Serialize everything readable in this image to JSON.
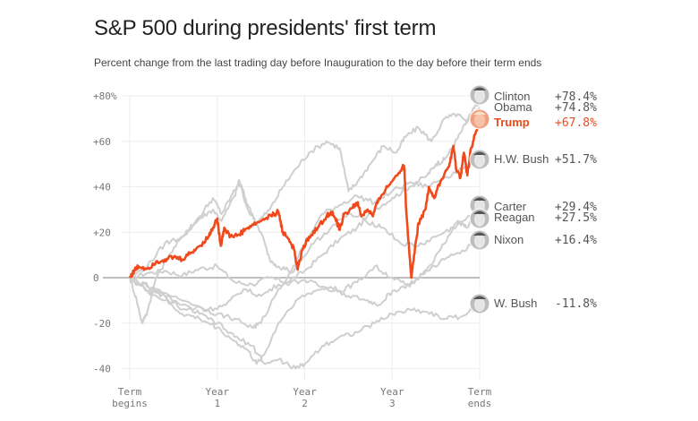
{
  "title": "S&P 500 during presidents' first term",
  "subtitle": "Percent change from the last trading day before Inauguration to the day before their term ends",
  "chart_data": {
    "type": "line",
    "title": "S&P 500 during presidents' first term",
    "subtitle": "Percent change from the last trading day before Inauguration to the day before their term ends",
    "xlabel": "",
    "ylabel": "",
    "xlim": [
      0,
      4
    ],
    "ylim": [
      -45,
      82
    ],
    "grid": true,
    "legend": "right",
    "y_ticks": [
      {
        "value": 80,
        "label": "+80%"
      },
      {
        "value": 60,
        "label": "+60"
      },
      {
        "value": 40,
        "label": "+40"
      },
      {
        "value": 20,
        "label": "+20"
      },
      {
        "value": 0,
        "label": "0"
      },
      {
        "value": -20,
        "label": "-20"
      },
      {
        "value": -40,
        "label": "-40"
      }
    ],
    "x_ticks": [
      {
        "value": 0,
        "line1": "Term",
        "line2": "begins"
      },
      {
        "value": 1,
        "line1": "Year",
        "line2": "1"
      },
      {
        "value": 2,
        "line1": "Year",
        "line2": "2"
      },
      {
        "value": 3,
        "line1": "Year",
        "line2": "3"
      },
      {
        "value": 4,
        "line1": "Term",
        "line2": "ends"
      }
    ],
    "colors": {
      "highlight": "#f04a1c",
      "other": "#cfcfcf",
      "zero_line": "#aaaaaa",
      "grid": "#eeeeee"
    },
    "series": [
      {
        "name": "Clinton",
        "value_label": "+78.4%",
        "final": 78.4,
        "highlight": false,
        "points": [
          [
            0,
            0
          ],
          [
            0.2,
            2
          ],
          [
            0.4,
            3
          ],
          [
            0.6,
            1
          ],
          [
            0.8,
            4
          ],
          [
            1.0,
            5
          ],
          [
            1.2,
            -2
          ],
          [
            1.4,
            -3
          ],
          [
            1.6,
            0
          ],
          [
            1.8,
            -2
          ],
          [
            2.0,
            3
          ],
          [
            2.2,
            10
          ],
          [
            2.4,
            17
          ],
          [
            2.6,
            22
          ],
          [
            2.8,
            30
          ],
          [
            3.0,
            35
          ],
          [
            3.2,
            40
          ],
          [
            3.4,
            45
          ],
          [
            3.5,
            50
          ],
          [
            3.6,
            52
          ],
          [
            3.7,
            58
          ],
          [
            3.8,
            65
          ],
          [
            3.9,
            72
          ],
          [
            4.0,
            78.4
          ]
        ]
      },
      {
        "name": "Obama",
        "value_label": "+74.8%",
        "final": 74.8,
        "highlight": false,
        "points": [
          [
            0,
            0
          ],
          [
            0.08,
            -10
          ],
          [
            0.14,
            -20
          ],
          [
            0.2,
            -15
          ],
          [
            0.3,
            0
          ],
          [
            0.45,
            10
          ],
          [
            0.6,
            18
          ],
          [
            0.8,
            26
          ],
          [
            0.95,
            30
          ],
          [
            1.05,
            25
          ],
          [
            1.2,
            36
          ],
          [
            1.25,
            43
          ],
          [
            1.35,
            32
          ],
          [
            1.45,
            24
          ],
          [
            1.6,
            30
          ],
          [
            1.75,
            40
          ],
          [
            1.9,
            48
          ],
          [
            2.05,
            55
          ],
          [
            2.25,
            60
          ],
          [
            2.4,
            57
          ],
          [
            2.5,
            38
          ],
          [
            2.6,
            42
          ],
          [
            2.75,
            50
          ],
          [
            2.9,
            58
          ],
          [
            3.05,
            55
          ],
          [
            3.15,
            62
          ],
          [
            3.3,
            66
          ],
          [
            3.45,
            60
          ],
          [
            3.6,
            70
          ],
          [
            3.75,
            72
          ],
          [
            3.85,
            68
          ],
          [
            4.0,
            74.8
          ]
        ]
      },
      {
        "name": "H.W. Bush",
        "value_label": "+51.7%",
        "final": 51.7,
        "highlight": false,
        "points": [
          [
            0,
            0
          ],
          [
            0.2,
            5
          ],
          [
            0.4,
            15
          ],
          [
            0.6,
            18
          ],
          [
            0.8,
            27
          ],
          [
            0.95,
            35
          ],
          [
            1.05,
            28
          ],
          [
            1.15,
            35
          ],
          [
            1.25,
            42
          ],
          [
            1.35,
            30
          ],
          [
            1.5,
            20
          ],
          [
            1.6,
            8
          ],
          [
            1.7,
            5
          ],
          [
            1.85,
            3
          ],
          [
            2.0,
            15
          ],
          [
            2.2,
            28
          ],
          [
            2.4,
            32
          ],
          [
            2.6,
            36
          ],
          [
            2.8,
            33
          ],
          [
            3.0,
            38
          ],
          [
            3.2,
            42
          ],
          [
            3.4,
            40
          ],
          [
            3.6,
            44
          ],
          [
            3.8,
            48
          ],
          [
            4.0,
            51.7
          ]
        ]
      },
      {
        "name": "Carter",
        "value_label": "+29.4%",
        "final": 29.4,
        "highlight": false,
        "points": [
          [
            0,
            0
          ],
          [
            0.3,
            -5
          ],
          [
            0.6,
            -10
          ],
          [
            0.9,
            -14
          ],
          [
            1.1,
            -12
          ],
          [
            1.3,
            -5
          ],
          [
            1.5,
            -8
          ],
          [
            1.7,
            -3
          ],
          [
            2.0,
            -1
          ],
          [
            2.2,
            -4
          ],
          [
            2.4,
            -6
          ],
          [
            2.6,
            -2
          ],
          [
            2.8,
            5
          ],
          [
            3.0,
            0
          ],
          [
            3.2,
            -4
          ],
          [
            3.4,
            4
          ],
          [
            3.6,
            15
          ],
          [
            3.75,
            25
          ],
          [
            3.85,
            22
          ],
          [
            4.0,
            29.4
          ]
        ]
      },
      {
        "name": "Reagan",
        "value_label": "+27.5%",
        "final": 27.5,
        "highlight": false,
        "points": [
          [
            0,
            0
          ],
          [
            0.2,
            -4
          ],
          [
            0.4,
            -8
          ],
          [
            0.6,
            -14
          ],
          [
            0.8,
            -13
          ],
          [
            1.0,
            -16
          ],
          [
            1.2,
            -18
          ],
          [
            1.4,
            -22
          ],
          [
            1.5,
            -20
          ],
          [
            1.7,
            -5
          ],
          [
            1.9,
            5
          ],
          [
            2.1,
            15
          ],
          [
            2.3,
            22
          ],
          [
            2.5,
            28
          ],
          [
            2.7,
            25
          ],
          [
            2.9,
            22
          ],
          [
            3.1,
            15
          ],
          [
            3.3,
            14
          ],
          [
            3.5,
            18
          ],
          [
            3.7,
            22
          ],
          [
            3.85,
            26
          ],
          [
            4.0,
            27.5
          ]
        ]
      },
      {
        "name": "Nixon",
        "value_label": "+16.4%",
        "final": 16.4,
        "highlight": false,
        "points": [
          [
            0,
            0
          ],
          [
            0.2,
            -6
          ],
          [
            0.4,
            -10
          ],
          [
            0.6,
            -16
          ],
          [
            0.8,
            -18
          ],
          [
            1.0,
            -22
          ],
          [
            1.2,
            -28
          ],
          [
            1.35,
            -32
          ],
          [
            1.45,
            -38
          ],
          [
            1.55,
            -33
          ],
          [
            1.7,
            -20
          ],
          [
            1.9,
            -10
          ],
          [
            2.1,
            -6
          ],
          [
            2.3,
            -4
          ],
          [
            2.5,
            -8
          ],
          [
            2.7,
            -10
          ],
          [
            2.85,
            -12
          ],
          [
            3.0,
            -6
          ],
          [
            3.2,
            -3
          ],
          [
            3.4,
            3
          ],
          [
            3.6,
            8
          ],
          [
            3.8,
            12
          ],
          [
            4.0,
            16.4
          ]
        ]
      },
      {
        "name": "W. Bush",
        "value_label": "-11.8%",
        "final": -11.8,
        "highlight": false,
        "points": [
          [
            0,
            0
          ],
          [
            0.2,
            -6
          ],
          [
            0.4,
            -8
          ],
          [
            0.6,
            -12
          ],
          [
            0.8,
            -16
          ],
          [
            1.0,
            -20
          ],
          [
            1.2,
            -26
          ],
          [
            1.4,
            -30
          ],
          [
            1.55,
            -38
          ],
          [
            1.7,
            -36
          ],
          [
            1.9,
            -40
          ],
          [
            2.0,
            -38
          ],
          [
            2.2,
            -30
          ],
          [
            2.4,
            -26
          ],
          [
            2.6,
            -24
          ],
          [
            2.8,
            -20
          ],
          [
            3.0,
            -16
          ],
          [
            3.2,
            -14
          ],
          [
            3.4,
            -15
          ],
          [
            3.6,
            -18
          ],
          [
            3.8,
            -17
          ],
          [
            4.0,
            -11.8
          ]
        ]
      },
      {
        "name": "Trump",
        "value_label": "+67.8%",
        "final": 67.8,
        "highlight": true,
        "points": [
          [
            0,
            0
          ],
          [
            0.05,
            3
          ],
          [
            0.1,
            5
          ],
          [
            0.2,
            4
          ],
          [
            0.3,
            7
          ],
          [
            0.4,
            8
          ],
          [
            0.5,
            9
          ],
          [
            0.6,
            8
          ],
          [
            0.7,
            11
          ],
          [
            0.8,
            14
          ],
          [
            0.9,
            18
          ],
          [
            0.95,
            22
          ],
          [
            1.0,
            26
          ],
          [
            1.04,
            14
          ],
          [
            1.08,
            22
          ],
          [
            1.15,
            18
          ],
          [
            1.25,
            19
          ],
          [
            1.35,
            22
          ],
          [
            1.45,
            24
          ],
          [
            1.55,
            26
          ],
          [
            1.65,
            28
          ],
          [
            1.7,
            29
          ],
          [
            1.75,
            20
          ],
          [
            1.82,
            17
          ],
          [
            1.88,
            12
          ],
          [
            1.92,
            3.5
          ],
          [
            1.97,
            12
          ],
          [
            2.05,
            18
          ],
          [
            2.15,
            22
          ],
          [
            2.25,
            27
          ],
          [
            2.3,
            29
          ],
          [
            2.35,
            26
          ],
          [
            2.4,
            21
          ],
          [
            2.45,
            28
          ],
          [
            2.55,
            31
          ],
          [
            2.6,
            33
          ],
          [
            2.65,
            27
          ],
          [
            2.72,
            30
          ],
          [
            2.78,
            27
          ],
          [
            2.85,
            35
          ],
          [
            2.95,
            40
          ],
          [
            3.05,
            45
          ],
          [
            3.12,
            49
          ],
          [
            3.14,
            48
          ],
          [
            3.16,
            30
          ],
          [
            3.2,
            9
          ],
          [
            3.22,
            0
          ],
          [
            3.25,
            10
          ],
          [
            3.3,
            24
          ],
          [
            3.38,
            30
          ],
          [
            3.42,
            40
          ],
          [
            3.48,
            35
          ],
          [
            3.55,
            42
          ],
          [
            3.65,
            49
          ],
          [
            3.7,
            58
          ],
          [
            3.73,
            48
          ],
          [
            3.78,
            44
          ],
          [
            3.82,
            55
          ],
          [
            3.86,
            45
          ],
          [
            3.9,
            57
          ],
          [
            3.95,
            63
          ],
          [
            4.0,
            67.8
          ]
        ]
      }
    ]
  }
}
